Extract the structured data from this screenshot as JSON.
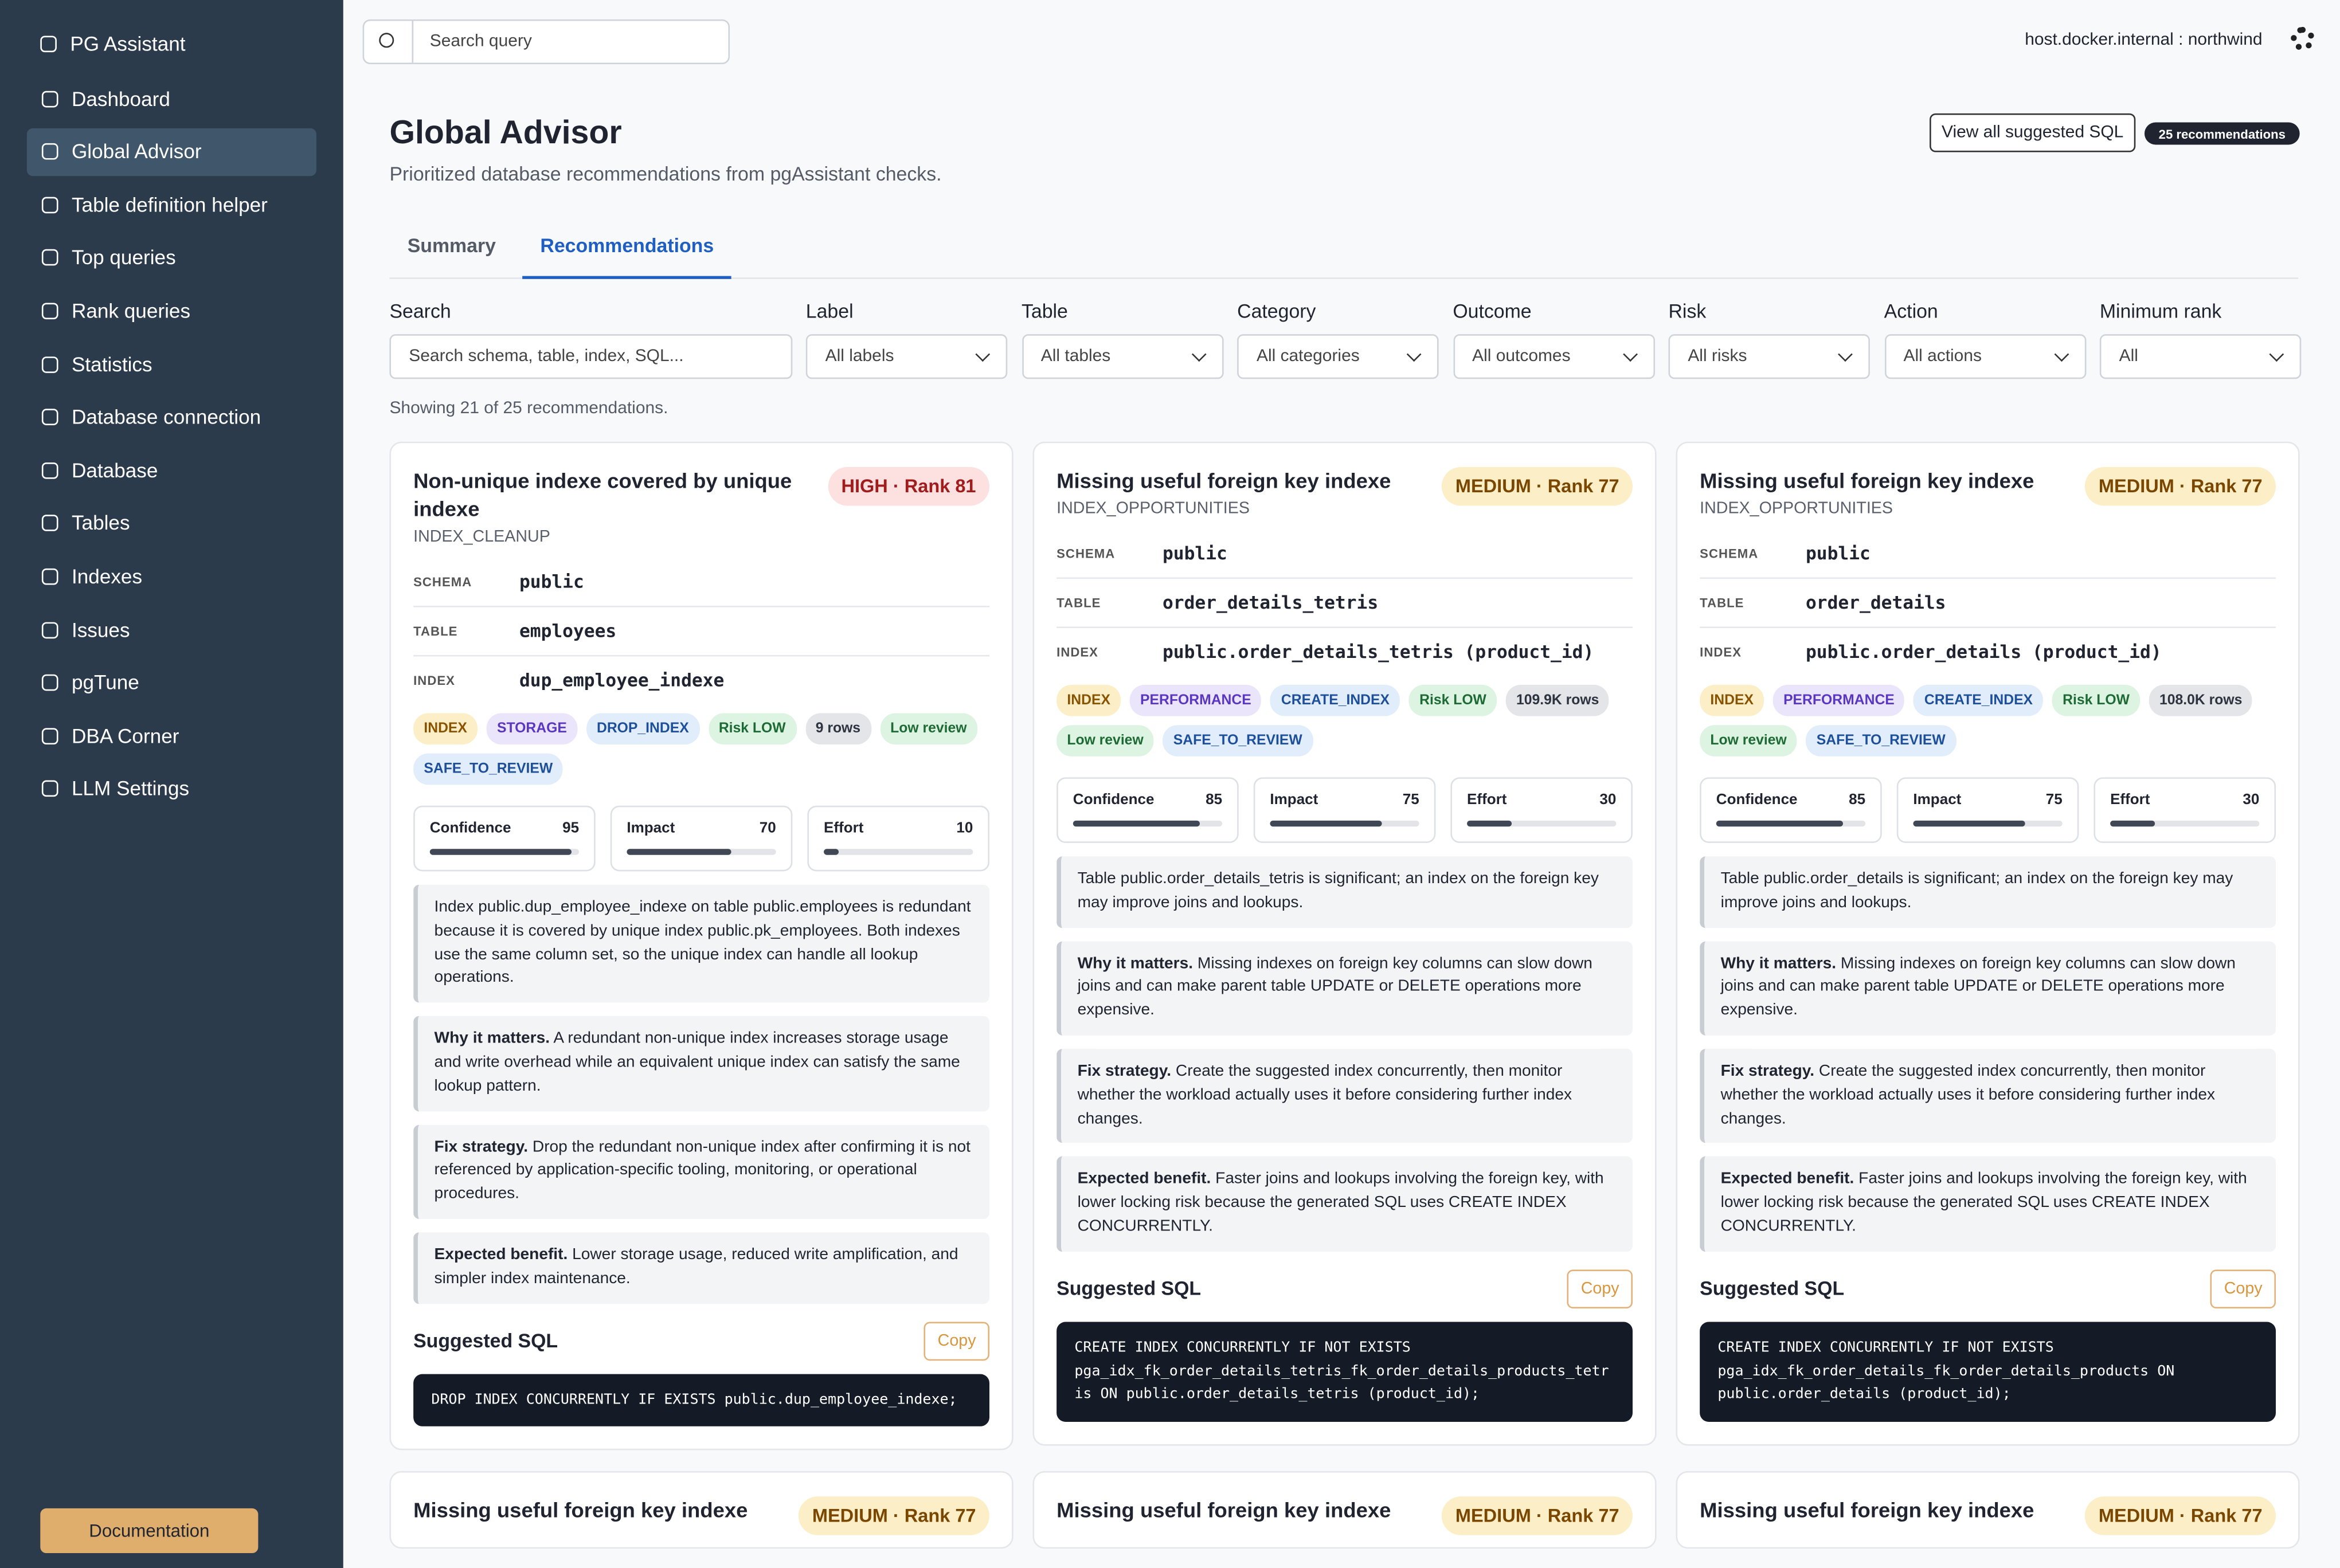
{
  "sidebar": {
    "app_name": "PG Assistant",
    "items": [
      "Dashboard",
      "Global Advisor",
      "Table definition helper",
      "Top queries",
      "Rank queries",
      "Statistics",
      "Database connection",
      "Database",
      "Tables",
      "Indexes",
      "Issues",
      "pgTune",
      "DBA Corner",
      "LLM Settings"
    ],
    "active": 1,
    "documentation": "Documentation"
  },
  "topbar": {
    "search_placeholder": "Search query",
    "connection": "host.docker.internal : northwind"
  },
  "header": {
    "title": "Global Advisor",
    "subtitle": "Prioritized database recommendations from pgAssistant checks.",
    "view_all_button": "View all suggested SQL",
    "count_badge": "25 recommendations"
  },
  "tabs": {
    "items": [
      "Summary",
      "Recommendations"
    ],
    "active": 1
  },
  "filters": [
    {
      "label": "Search",
      "value": "Search schema, table, index, SQL..."
    },
    {
      "label": "Label",
      "value": "All labels"
    },
    {
      "label": "Table",
      "value": "All tables"
    },
    {
      "label": "Category",
      "value": "All categories"
    },
    {
      "label": "Outcome",
      "value": "All outcomes"
    },
    {
      "label": "Risk",
      "value": "All risks"
    },
    {
      "label": "Action",
      "value": "All actions"
    },
    {
      "label": "Minimum rank",
      "value": "All"
    }
  ],
  "showing": "Showing 21 of 25 recommendations.",
  "score_range": [
    0,
    100
  ],
  "cards": [
    {
      "title": "Non-unique indexe covered by unique indexe",
      "badge": "HIGH · Rank 81",
      "badge_color": "#fde0e0",
      "badge_text_color": "#a11d1d",
      "category": "INDEX_CLEANUP",
      "fields": [
        {
          "key": "SCHEMA",
          "value": "public"
        },
        {
          "key": "TABLE",
          "value": "employees"
        },
        {
          "key": "INDEX",
          "value": "dup_employee_indexe"
        }
      ],
      "tags": [
        {
          "label": "INDEX",
          "color": "#fcefc7",
          "text_color": "#8a5300"
        },
        {
          "label": "STORAGE",
          "color": "#ebe5fb",
          "text_color": "#5a37c0"
        },
        {
          "label": "DROP_INDEX",
          "color": "#e2edfb",
          "text_color": "#1d4f9a"
        },
        {
          "label": "Risk LOW",
          "color": "#def4e3",
          "text_color": "#1d6a34"
        },
        {
          "label": "9 rows",
          "color": "#e3e5e9",
          "text_color": "#2d3440"
        },
        {
          "label": "Low review",
          "color": "#def4e3",
          "text_color": "#1d6a34"
        },
        {
          "label": "SAFE_TO_REVIEW",
          "color": "#e2edfb",
          "text_color": "#1d4f9a"
        }
      ],
      "scores": [
        {
          "name": "Confidence",
          "value": 95
        },
        {
          "name": "Impact",
          "value": 70
        },
        {
          "name": "Effort",
          "value": 10
        }
      ],
      "description": "Index public.dup_employee_indexe on table public.employees is redundant because it is covered by unique index public.pk_employees. Both indexes use the same column set, so the unique index can handle all lookup operations.",
      "sections": [
        {
          "heading": "Why it matters.",
          "text": "A redundant non-unique index increases storage usage and write overhead while an equivalent unique index can satisfy the same lookup pattern."
        },
        {
          "heading": "Fix strategy.",
          "text": "Drop the redundant non-unique index after confirming it is not referenced by application-specific tooling, monitoring, or operational procedures."
        },
        {
          "heading": "Expected benefit.",
          "text": "Lower storage usage, reduced write amplification, and simpler index maintenance."
        }
      ],
      "sql_heading": "Suggested SQL",
      "copy": "Copy",
      "sql": "DROP INDEX CONCURRENTLY IF EXISTS public.dup_employee_indexe;"
    },
    {
      "title": "Missing useful foreign key indexe",
      "badge": "MEDIUM · Rank 77",
      "badge_color": "#fcefc7",
      "badge_text_color": "#7a4600",
      "category": "INDEX_OPPORTUNITIES",
      "fields": [
        {
          "key": "SCHEMA",
          "value": "public"
        },
        {
          "key": "TABLE",
          "value": "order_details_tetris"
        },
        {
          "key": "INDEX",
          "value": "public.order_details_tetris (product_id)"
        }
      ],
      "tags": [
        {
          "label": "INDEX",
          "color": "#fcefc7",
          "text_color": "#8a5300"
        },
        {
          "label": "PERFORMANCE",
          "color": "#ebe5fb",
          "text_color": "#5a37c0"
        },
        {
          "label": "CREATE_INDEX",
          "color": "#e2edfb",
          "text_color": "#1d4f9a"
        },
        {
          "label": "Risk LOW",
          "color": "#def4e3",
          "text_color": "#1d6a34"
        },
        {
          "label": "109.9K rows",
          "color": "#e3e5e9",
          "text_color": "#2d3440"
        },
        {
          "label": "Low review",
          "color": "#def4e3",
          "text_color": "#1d6a34"
        },
        {
          "label": "SAFE_TO_REVIEW",
          "color": "#e2edfb",
          "text_color": "#1d4f9a"
        }
      ],
      "scores": [
        {
          "name": "Confidence",
          "value": 85
        },
        {
          "name": "Impact",
          "value": 75
        },
        {
          "name": "Effort",
          "value": 30
        }
      ],
      "description": "Table public.order_details_tetris is significant; an index on the foreign key may improve joins and lookups.",
      "sections": [
        {
          "heading": "Why it matters.",
          "text": "Missing indexes on foreign key columns can slow down joins and can make parent table UPDATE or DELETE operations more expensive."
        },
        {
          "heading": "Fix strategy.",
          "text": "Create the suggested index concurrently, then monitor whether the workload actually uses it before considering further index changes."
        },
        {
          "heading": "Expected benefit.",
          "text": "Faster joins and lookups involving the foreign key, with lower locking risk because the generated SQL uses CREATE INDEX CONCURRENTLY."
        }
      ],
      "sql_heading": "Suggested SQL",
      "copy": "Copy",
      "sql": "CREATE INDEX CONCURRENTLY IF NOT EXISTS\npga_idx_fk_order_details_tetris_fk_order_details_products_tetris ON public.order_details_tetris (product_id);"
    },
    {
      "title": "Missing useful foreign key indexe",
      "badge": "MEDIUM · Rank 77",
      "badge_color": "#fcefc7",
      "badge_text_color": "#7a4600",
      "category": "INDEX_OPPORTUNITIES",
      "fields": [
        {
          "key": "SCHEMA",
          "value": "public"
        },
        {
          "key": "TABLE",
          "value": "order_details"
        },
        {
          "key": "INDEX",
          "value": "public.order_details (product_id)"
        }
      ],
      "tags": [
        {
          "label": "INDEX",
          "color": "#fcefc7",
          "text_color": "#8a5300"
        },
        {
          "label": "PERFORMANCE",
          "color": "#ebe5fb",
          "text_color": "#5a37c0"
        },
        {
          "label": "CREATE_INDEX",
          "color": "#e2edfb",
          "text_color": "#1d4f9a"
        },
        {
          "label": "Risk LOW",
          "color": "#def4e3",
          "text_color": "#1d6a34"
        },
        {
          "label": "108.0K rows",
          "color": "#e3e5e9",
          "text_color": "#2d3440"
        },
        {
          "label": "Low review",
          "color": "#def4e3",
          "text_color": "#1d6a34"
        },
        {
          "label": "SAFE_TO_REVIEW",
          "color": "#e2edfb",
          "text_color": "#1d4f9a"
        }
      ],
      "scores": [
        {
          "name": "Confidence",
          "value": 85
        },
        {
          "name": "Impact",
          "value": 75
        },
        {
          "name": "Effort",
          "value": 30
        }
      ],
      "description": "Table public.order_details is significant; an index on the foreign key may improve joins and lookups.",
      "sections": [
        {
          "heading": "Why it matters.",
          "text": "Missing indexes on foreign key columns can slow down joins and can make parent table UPDATE or DELETE operations more expensive."
        },
        {
          "heading": "Fix strategy.",
          "text": "Create the suggested index concurrently, then monitor whether the workload actually uses it before considering further index changes."
        },
        {
          "heading": "Expected benefit.",
          "text": "Faster joins and lookups involving the foreign key, with lower locking risk because the generated SQL uses CREATE INDEX CONCURRENTLY."
        }
      ],
      "sql_heading": "Suggested SQL",
      "copy": "Copy",
      "sql": "CREATE INDEX CONCURRENTLY IF NOT EXISTS\npga_idx_fk_order_details_fk_order_details_products ON\npublic.order_details (product_id);"
    },
    {
      "title": "Missing useful foreign key indexe",
      "badge": "MEDIUM · Rank 77",
      "badge_color": "#fcefc7",
      "badge_text_color": "#7a4600"
    },
    {
      "title": "Missing useful foreign key indexe",
      "badge": "MEDIUM · Rank 77",
      "badge_color": "#fcefc7",
      "badge_text_color": "#7a4600"
    },
    {
      "title": "Missing useful foreign key indexe",
      "badge": "MEDIUM · Rank 77",
      "badge_color": "#fcefc7",
      "badge_text_color": "#7a4600"
    }
  ]
}
